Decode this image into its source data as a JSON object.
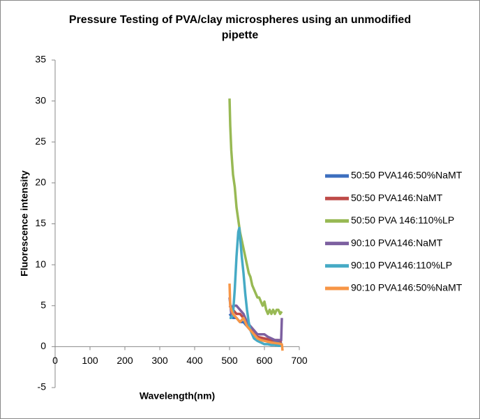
{
  "chart_data": {
    "type": "line",
    "title": "Pressure Testing of PVA/clay microspheres using an unmodified pipette",
    "x_label": "Wavelength(nm)",
    "y_label": "Fluorescence intensity",
    "xlim": [
      0,
      700
    ],
    "xticks": [
      0,
      100,
      200,
      300,
      400,
      500,
      600,
      700
    ],
    "ylim": [
      -5,
      35
    ],
    "yticks": [
      -5,
      0,
      5,
      10,
      15,
      20,
      25,
      30,
      35
    ],
    "legend": "right",
    "series": [
      {
        "name": "50:50 PVA146:50%NaMT",
        "color": "#3c6fbf",
        "x": [
          500,
          510,
          520,
          530,
          540,
          550,
          560,
          570,
          580,
          600,
          620,
          640,
          650
        ],
        "values": [
          4,
          3.5,
          3.5,
          3,
          3,
          2.5,
          2,
          1.5,
          1,
          0.8,
          0.6,
          0.5,
          0.4
        ]
      },
      {
        "name": "50:50 PVA146:NaMT",
        "color": "#be4b48",
        "x": [
          500,
          510,
          520,
          530,
          540,
          550,
          560,
          570,
          580,
          600,
          620,
          640,
          650
        ],
        "values": [
          5,
          4.5,
          4,
          4,
          3.5,
          3,
          2,
          1.8,
          1.2,
          1,
          0.8,
          0.8,
          0.6
        ]
      },
      {
        "name": "50:50 PVA 146:110%LP",
        "color": "#98b954",
        "x": [
          500,
          502,
          505,
          510,
          515,
          520,
          525,
          530,
          535,
          540,
          545,
          550,
          555,
          560,
          565,
          570,
          575,
          580,
          585,
          590,
          595,
          600,
          605,
          610,
          615,
          620,
          625,
          630,
          635,
          640,
          645,
          650
        ],
        "values": [
          30.3,
          27,
          24,
          21,
          19.5,
          17,
          15.5,
          14,
          13,
          12,
          11,
          10,
          9,
          8.5,
          7.5,
          7,
          6.5,
          6,
          6,
          5.5,
          5,
          5.5,
          4.5,
          4,
          4.5,
          4,
          4.5,
          4,
          4.5,
          4.5,
          4,
          4.3
        ]
      },
      {
        "name": "90:10 PVA146:NaMT",
        "color": "#7d60a0",
        "x": [
          500,
          505,
          510,
          520,
          530,
          540,
          550,
          560,
          570,
          580,
          590,
          600,
          610,
          620,
          630,
          640,
          648,
          650
        ],
        "values": [
          6,
          4,
          5,
          5,
          4.5,
          4,
          3,
          2.5,
          2,
          1.5,
          1.5,
          1.5,
          1.2,
          1,
          0.8,
          0.8,
          0.8,
          3.5
        ]
      },
      {
        "name": "90:10 PVA146:110%LP",
        "color": "#46aac5",
        "x": [
          500,
          505,
          510,
          515,
          520,
          525,
          528,
          530,
          535,
          540,
          545,
          550,
          555,
          560,
          565,
          570,
          580,
          590,
          600,
          610,
          620,
          630,
          640,
          650
        ],
        "values": [
          3.5,
          3.5,
          4,
          7,
          11,
          14,
          14.5,
          13.5,
          11,
          9,
          6.5,
          4.5,
          3,
          2,
          1.5,
          1,
          0.7,
          0.5,
          0.3,
          0.3,
          0.2,
          0.2,
          0.1,
          0.1
        ]
      },
      {
        "name": "90:10 PVA146:50%NaMT",
        "color": "#f79646",
        "x": [
          500,
          502,
          505,
          510,
          520,
          530,
          540,
          550,
          560,
          570,
          580,
          590,
          600,
          620,
          640,
          650,
          652
        ],
        "values": [
          7.7,
          5,
          4.5,
          4,
          3.5,
          3,
          3.5,
          2.5,
          2,
          1.5,
          1,
          0.8,
          0.7,
          0.5,
          0.4,
          0.3,
          -0.5
        ]
      }
    ]
  }
}
